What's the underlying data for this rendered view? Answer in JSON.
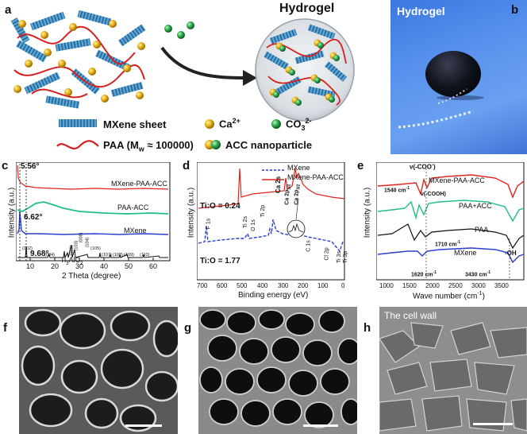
{
  "panels": {
    "a": {
      "label": "a",
      "title": "Hydrogel",
      "legend": {
        "mxene": "MXene sheet",
        "ca": "Ca",
        "ca_sup": "2+",
        "co3": "CO",
        "co3_sub": "3",
        "co3_sup": "2-",
        "paa": "PAA (M",
        "paa_sub": "w",
        "paa_rest": " ≈ 100000)",
        "acc": "ACC nanoparticle"
      }
    },
    "b": {
      "label": "b",
      "title": "Hydrogel"
    },
    "c": {
      "label": "c",
      "ylabel": "Intensity (a.u.)",
      "xlabel": "2 Theta (degree)",
      "series": [
        "MXene-PAA-ACC",
        "PAA-ACC",
        "MXene"
      ],
      "peaks": {
        "p1": "5.56°",
        "p2": "6.62°",
        "p3": "9.68°"
      },
      "ti3alc2": "Ti",
      "ti3alc2_sub1": "3",
      "ti3alc2_mid": "AlC",
      "ti3alc2_sub2": "2",
      "hkl": [
        "(002)",
        "(004)",
        "(101)",
        "(103)",
        "(008)",
        "(104)",
        "(105)",
        "(107)",
        "(108)",
        "(109)",
        "(110)"
      ],
      "xticks": [
        "10",
        "20",
        "30",
        "40",
        "50",
        "60"
      ]
    },
    "d": {
      "label": "d",
      "ylabel": "Intensity (a.u.)",
      "xlabel": "Binding energy (eV)",
      "legend": [
        "MXene",
        "MXene-PAA-ACC"
      ],
      "ratio_top": "Ti:O = 0.24",
      "ratio_bottom": "Ti:O = 1.77",
      "peaks": [
        "F 1s",
        "Ti 2s",
        "O 1s",
        "Ti 2p",
        "Ca 2s",
        "Ca 2p",
        "C 1s",
        "Cl 2p",
        "Ti 3s",
        "Ti 3p"
      ],
      "ca2p_a": "Ca 2p",
      "ca2p_a_sub": "1/2",
      "ca2p_b": "Ca 2p",
      "ca2p_b_sub": "3/2",
      "xticks": [
        "700",
        "600",
        "500",
        "400",
        "300",
        "200",
        "100",
        "0"
      ]
    },
    "e": {
      "label": "e",
      "ylabel": "Intensity (a.u.)",
      "xlabel": "Wave number (cm",
      "xlabel_sup": "-1",
      "xlabel_end": ")",
      "series": [
        "MXene-PAA-ACC",
        "PAA+ACC",
        "PAA",
        "MXene"
      ],
      "annots": {
        "coo": "ν(-COO",
        "coo_sup": "-",
        "coo_end": ")",
        "cooh": "ν(-COOH)",
        "a1540": "1540 cm",
        "a1710": "1710 cm",
        "a1620": "1620 cm",
        "a3430": "3430 cm",
        "oh": "-OH",
        "sup": "-1"
      },
      "xticks": [
        "1000",
        "1500",
        "2000",
        "2500",
        "3000",
        "3500"
      ]
    },
    "f": {
      "label": "f"
    },
    "g": {
      "label": "g"
    },
    "h": {
      "label": "h",
      "caption": "The cell wall"
    }
  }
}
